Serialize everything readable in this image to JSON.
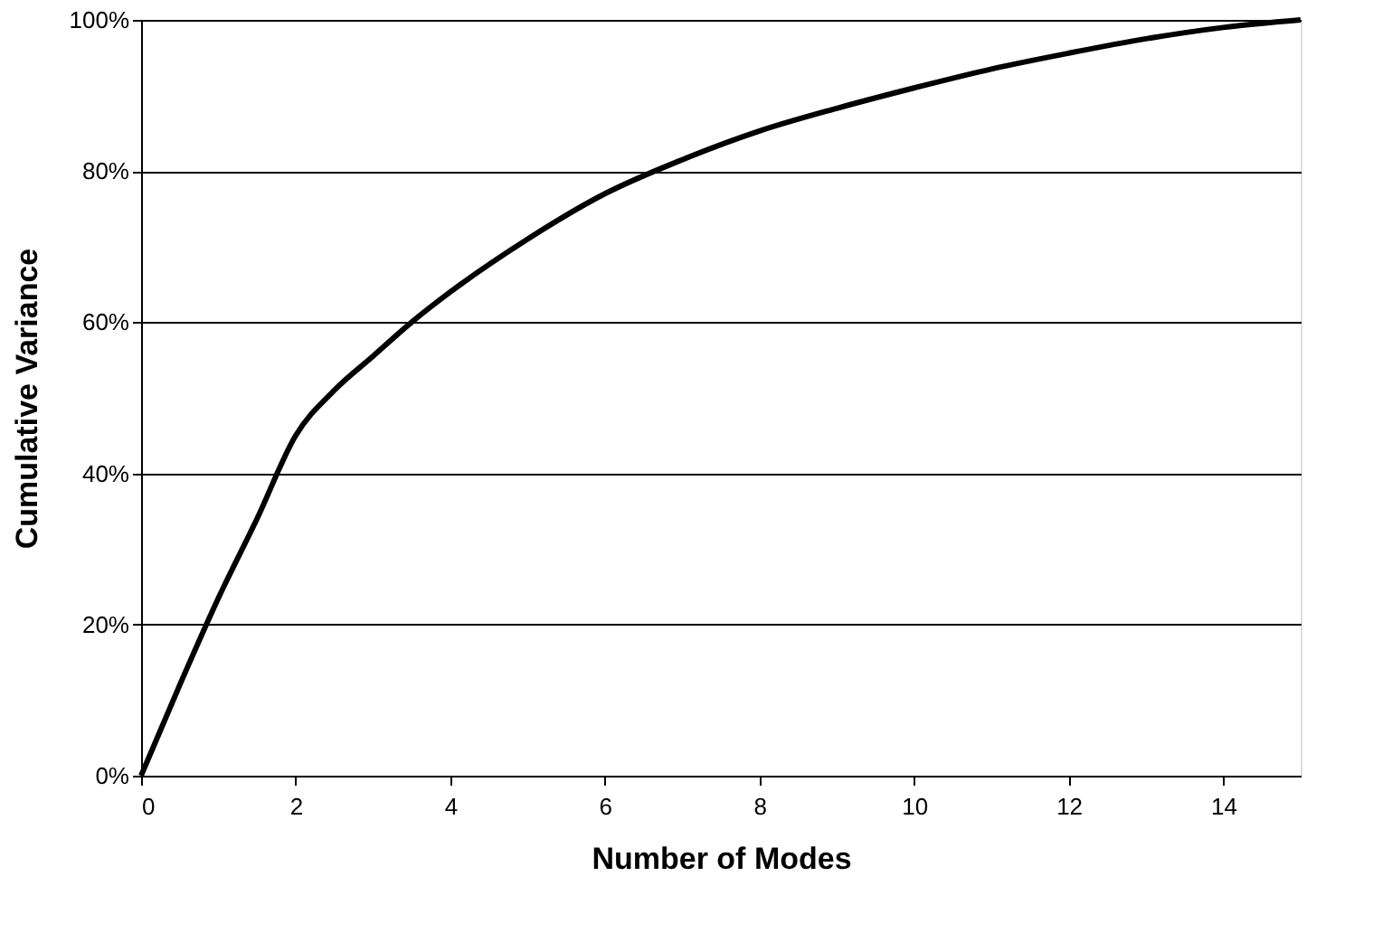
{
  "chart_data": {
    "type": "line",
    "xlabel": "Number of Modes",
    "ylabel": "Cumulative Variance",
    "x": [
      0,
      0.5,
      1,
      1.5,
      2,
      2.5,
      3,
      3.5,
      4,
      5,
      6,
      7,
      8,
      9,
      10,
      11,
      12,
      13,
      14,
      15
    ],
    "series": [
      {
        "color": "#000000",
        "values": [
          0,
          12,
          23.5,
          34,
          45,
          51,
          55.5,
          60,
          64,
          71,
          77,
          81.5,
          85.3,
          88.3,
          91,
          93.5,
          95.6,
          97.5,
          99,
          100
        ]
      }
    ],
    "xlim": [
      0,
      15
    ],
    "xticks": [
      0,
      2,
      4,
      6,
      8,
      10,
      12,
      14
    ],
    "ylim": [
      0,
      100
    ],
    "yticks": [
      {
        "value": 0,
        "label": "0%"
      },
      {
        "value": 20,
        "label": "20%"
      },
      {
        "value": 40,
        "label": "40%"
      },
      {
        "value": 60,
        "label": "60%"
      },
      {
        "value": 80,
        "label": "80%"
      },
      {
        "value": 100,
        "label": "100%"
      }
    ],
    "grid": "y",
    "legend": false,
    "marker": "none",
    "line_style": "solid"
  }
}
